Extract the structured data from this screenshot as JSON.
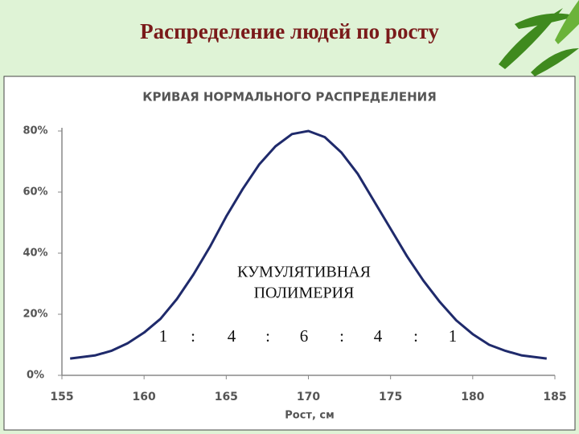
{
  "slide": {
    "title": "Распределение людей по росту"
  },
  "chart_data": {
    "type": "line",
    "title": "КРИВАЯ НОРМАЛЬНОГО РАСПРЕДЕЛЕНИЯ",
    "xlabel": "Рост, см",
    "x": [
      155.5,
      157,
      158,
      159,
      160,
      161,
      162,
      163,
      164,
      165,
      166,
      167,
      168,
      169,
      170,
      171,
      172,
      173,
      174,
      175,
      176,
      177,
      178,
      179,
      180,
      181,
      182,
      183,
      184.5
    ],
    "values": [
      5.5,
      6.5,
      8,
      10.5,
      14,
      18.5,
      25,
      33,
      42,
      52,
      61,
      69,
      75,
      79,
      80,
      78,
      73,
      66,
      57,
      48,
      39,
      31,
      24,
      18,
      13.5,
      10,
      8,
      6.5,
      5.5
    ],
    "color": "#1f2a6b",
    "xlim": [
      155,
      185
    ],
    "xticks": [
      155,
      160,
      165,
      170,
      175,
      180,
      185
    ],
    "ylim": [
      0,
      80
    ],
    "yticks": [
      {
        "value": 0,
        "label": "0%"
      },
      {
        "value": 20,
        "label": "20%"
      },
      {
        "value": 40,
        "label": "40%"
      },
      {
        "value": 60,
        "label": "60%"
      },
      {
        "value": 80,
        "label": "80%"
      }
    ],
    "grid": false,
    "annotations": [
      "КУМУЛЯТИВНАЯ",
      "ПОЛИМЕРИЯ"
    ],
    "ratio": [
      "1",
      ":",
      "4",
      ":",
      "6",
      ":",
      "4",
      ":",
      "1"
    ]
  }
}
